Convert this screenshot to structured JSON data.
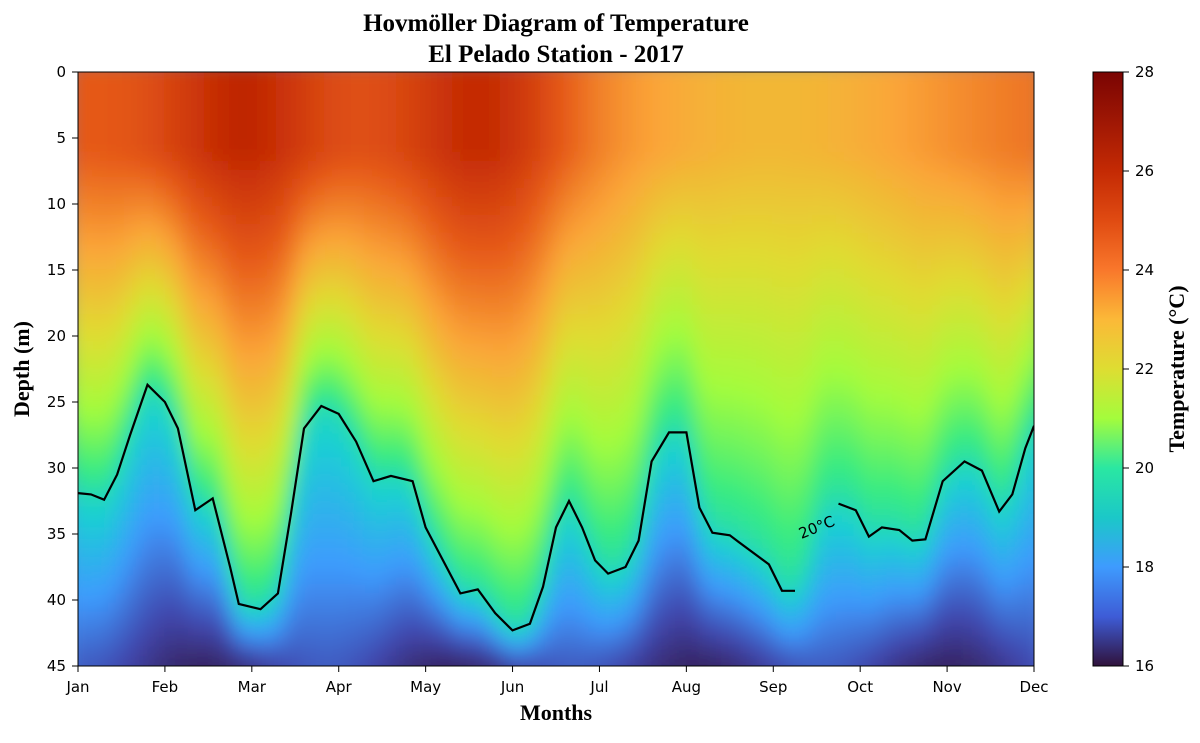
{
  "chart_data": {
    "type": "heatmap",
    "title": "Hovmöller Diagram of Temperature",
    "subtitle": "El Pelado Station - 2017",
    "xlabel": "Months",
    "ylabel": "Depth (m)",
    "colorbar_label": "Temperature (°C)",
    "colormap": "turbo",
    "x_ticks": [
      "Jan",
      "Feb",
      "Mar",
      "Apr",
      "May",
      "Jun",
      "Jul",
      "Aug",
      "Sep",
      "Oct",
      "Nov",
      "Dec"
    ],
    "y_ticks": [
      0,
      5,
      10,
      15,
      20,
      25,
      30,
      35,
      40,
      45
    ],
    "ylim": [
      0,
      45
    ],
    "y_inverted": true,
    "clim": [
      16,
      28
    ],
    "colorbar_ticks": [
      16,
      18,
      20,
      22,
      24,
      26,
      28
    ],
    "contour": {
      "level": 20,
      "label": "20°C",
      "color": "#000000",
      "label_month": 8.5,
      "points": [
        [
          0.0,
          31.9
        ],
        [
          0.15,
          32.0
        ],
        [
          0.3,
          32.4
        ],
        [
          0.45,
          30.5
        ],
        [
          0.6,
          27.5
        ],
        [
          0.8,
          23.7
        ],
        [
          1.0,
          25.0
        ],
        [
          1.15,
          27.0
        ],
        [
          1.35,
          33.2
        ],
        [
          1.55,
          32.3
        ],
        [
          1.75,
          37.5
        ],
        [
          1.85,
          40.3
        ],
        [
          2.1,
          40.7
        ],
        [
          2.3,
          39.5
        ],
        [
          2.45,
          33.5
        ],
        [
          2.6,
          27.0
        ],
        [
          2.8,
          25.3
        ],
        [
          3.0,
          25.9
        ],
        [
          3.2,
          28.0
        ],
        [
          3.4,
          31.0
        ],
        [
          3.6,
          30.6
        ],
        [
          3.85,
          31.0
        ],
        [
          4.0,
          34.5
        ],
        [
          4.2,
          37.0
        ],
        [
          4.4,
          39.5
        ],
        [
          4.6,
          39.2
        ],
        [
          4.8,
          41.0
        ],
        [
          5.0,
          42.3
        ],
        [
          5.2,
          41.8
        ],
        [
          5.35,
          39.0
        ],
        [
          5.5,
          34.5
        ],
        [
          5.65,
          32.5
        ],
        [
          5.8,
          34.5
        ],
        [
          5.95,
          37.0
        ],
        [
          6.1,
          38.0
        ],
        [
          6.3,
          37.5
        ],
        [
          6.45,
          35.5
        ],
        [
          6.6,
          29.5
        ],
        [
          6.8,
          27.3
        ],
        [
          7.0,
          27.3
        ],
        [
          7.15,
          33.0
        ],
        [
          7.3,
          34.9
        ],
        [
          7.5,
          35.1
        ],
        [
          7.6,
          35.6
        ],
        [
          7.95,
          37.3
        ],
        [
          8.1,
          39.3
        ],
        [
          8.25,
          39.3
        ],
        [
          8.4,
          37.5
        ],
        [
          8.55,
          33.0
        ],
        [
          8.75,
          32.7
        ],
        [
          8.95,
          33.2
        ],
        [
          9.1,
          35.2
        ],
        [
          9.25,
          34.5
        ],
        [
          9.45,
          34.7
        ],
        [
          9.6,
          35.5
        ],
        [
          9.75,
          35.4
        ],
        [
          9.95,
          31.0
        ],
        [
          10.2,
          29.5
        ],
        [
          10.4,
          30.2
        ],
        [
          10.6,
          33.3
        ],
        [
          10.75,
          32.0
        ],
        [
          10.9,
          28.5
        ],
        [
          11.0,
          26.8
        ]
      ]
    }
  }
}
